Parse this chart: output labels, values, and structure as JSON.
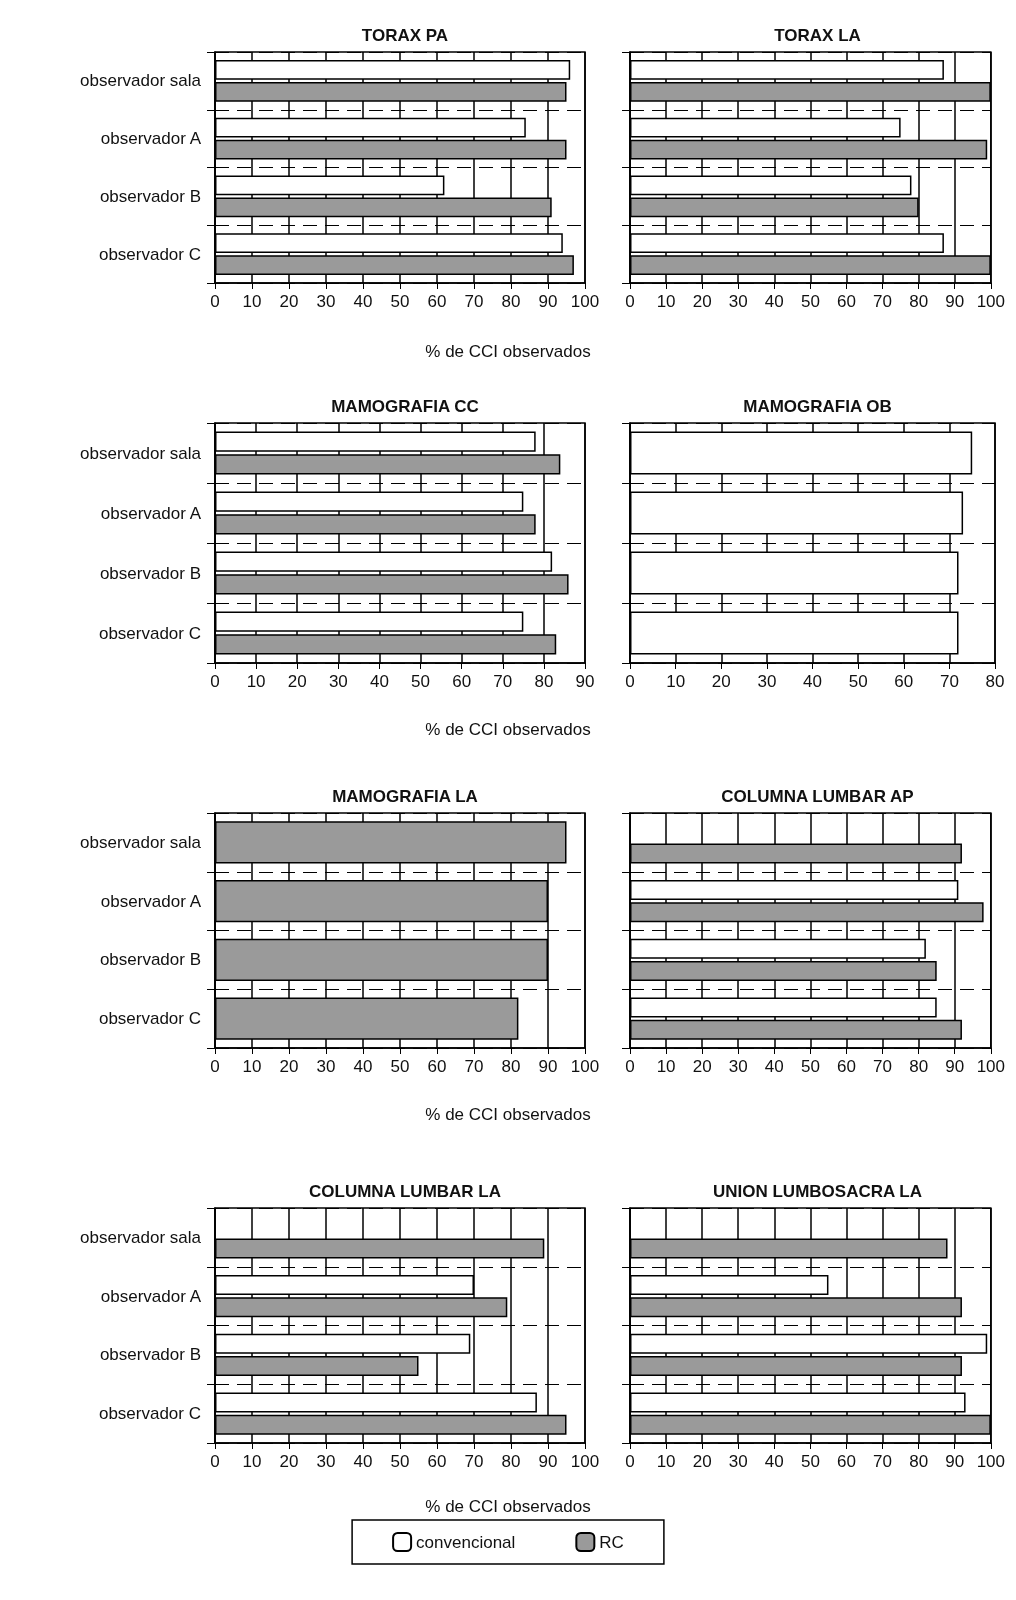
{
  "chart_data": [
    {
      "type": "bar",
      "orientation": "horizontal",
      "title": "TORAX PA",
      "xlabel": "% de CCI observados",
      "categories": [
        "observador sala",
        "observador A",
        "observador B",
        "observador C"
      ],
      "xlim": [
        0,
        100
      ],
      "xticks": [
        0,
        10,
        20,
        30,
        40,
        50,
        60,
        70,
        80,
        90,
        100
      ],
      "grid": true,
      "legend": "bottom",
      "series": [
        {
          "name": "convencional",
          "color": "#ffffff",
          "values": [
            96,
            84,
            62,
            94
          ]
        },
        {
          "name": "RC",
          "color": "#9a9a9a",
          "values": [
            95,
            95,
            91,
            97
          ]
        }
      ]
    },
    {
      "type": "bar",
      "orientation": "horizontal",
      "title": "TORAX LA",
      "categories": [
        "observador sala",
        "observador A",
        "observador B",
        "observador C"
      ],
      "xlim": [
        0,
        100
      ],
      "xticks": [
        0,
        10,
        20,
        30,
        40,
        50,
        60,
        70,
        80,
        90,
        100
      ],
      "grid": true,
      "tick_labels": "x",
      "series": [
        {
          "name": "convencional",
          "color": "#ffffff",
          "values": [
            87,
            75,
            78,
            87
          ]
        },
        {
          "name": "RC",
          "color": "#9a9a9a",
          "values": [
            100,
            99,
            80,
            100
          ]
        }
      ]
    },
    {
      "type": "bar",
      "orientation": "horizontal",
      "title": "MAMOGRAFIA CC",
      "xlabel": "% de CCI observados",
      "categories": [
        "observador sala",
        "observador A",
        "observador B",
        "observador C"
      ],
      "xlim": [
        0,
        90
      ],
      "xticks": [
        0,
        10,
        20,
        30,
        40,
        50,
        60,
        70,
        80,
        90
      ],
      "grid": true,
      "series": [
        {
          "name": "convencional",
          "color": "#ffffff",
          "values": [
            78,
            75,
            82,
            75
          ]
        },
        {
          "name": "RC",
          "color": "#9a9a9a",
          "values": [
            84,
            78,
            86,
            83
          ]
        }
      ]
    },
    {
      "type": "bar",
      "orientation": "horizontal",
      "title": "MAMOGRAFIA OB",
      "categories": [
        "observador sala",
        "observador A",
        "observador B",
        "observador C"
      ],
      "xlim": [
        0,
        80
      ],
      "xticks": [
        0,
        10,
        20,
        30,
        40,
        50,
        60,
        70,
        80
      ],
      "grid": true,
      "tick_labels": "x",
      "series": [
        {
          "name": "convencional",
          "color": "#ffffff",
          "values": [
            75,
            73,
            72,
            72
          ]
        }
      ]
    },
    {
      "type": "bar",
      "orientation": "horizontal",
      "title": "MAMOGRAFIA LA",
      "xlabel": "% de CCI observados",
      "categories": [
        "observador sala",
        "observador A",
        "observador B",
        "observador C"
      ],
      "xlim": [
        0,
        100
      ],
      "xticks": [
        0,
        10,
        20,
        30,
        40,
        50,
        60,
        70,
        80,
        90,
        100
      ],
      "grid": true,
      "series": [
        {
          "name": "RC",
          "color": "#9a9a9a",
          "values": [
            95,
            90,
            90,
            82
          ]
        }
      ]
    },
    {
      "type": "bar",
      "orientation": "horizontal",
      "title": "COLUMNA LUMBAR AP",
      "categories": [
        "observador sala",
        "observador A",
        "observador B",
        "observador C"
      ],
      "xlim": [
        0,
        100
      ],
      "xticks": [
        0,
        10,
        20,
        30,
        40,
        50,
        60,
        70,
        80,
        90,
        100
      ],
      "grid": true,
      "tick_labels": "x",
      "series": [
        {
          "name": "convencional",
          "color": "#ffffff",
          "values": [
            null,
            91,
            82,
            85
          ]
        },
        {
          "name": "RC",
          "color": "#9a9a9a",
          "values": [
            92,
            98,
            85,
            92
          ]
        }
      ]
    },
    {
      "type": "bar",
      "orientation": "horizontal",
      "title": "COLUMNA LUMBAR LA",
      "xlabel": "% de CCI observados",
      "categories": [
        "observador sala",
        "observador A",
        "observador B",
        "observador C"
      ],
      "xlim": [
        0,
        100
      ],
      "xticks": [
        0,
        10,
        20,
        30,
        40,
        50,
        60,
        70,
        80,
        90,
        100
      ],
      "grid": true,
      "series": [
        {
          "name": "convencional",
          "color": "#ffffff",
          "values": [
            null,
            70,
            69,
            87
          ]
        },
        {
          "name": "RC",
          "color": "#9a9a9a",
          "values": [
            89,
            79,
            55,
            95
          ]
        }
      ]
    },
    {
      "type": "bar",
      "orientation": "horizontal",
      "title": "UNION LUMBOSACRA LA",
      "categories": [
        "observador sala",
        "observador A",
        "observador B",
        "observador C"
      ],
      "xlim": [
        0,
        100
      ],
      "xticks": [
        0,
        10,
        20,
        30,
        40,
        50,
        60,
        70,
        80,
        90,
        100
      ],
      "grid": true,
      "tick_labels": "x",
      "series": [
        {
          "name": "convencional",
          "color": "#ffffff",
          "values": [
            null,
            55,
            99,
            93
          ]
        },
        {
          "name": "RC",
          "color": "#9a9a9a",
          "values": [
            88,
            92,
            92,
            100
          ]
        }
      ]
    }
  ]
}
